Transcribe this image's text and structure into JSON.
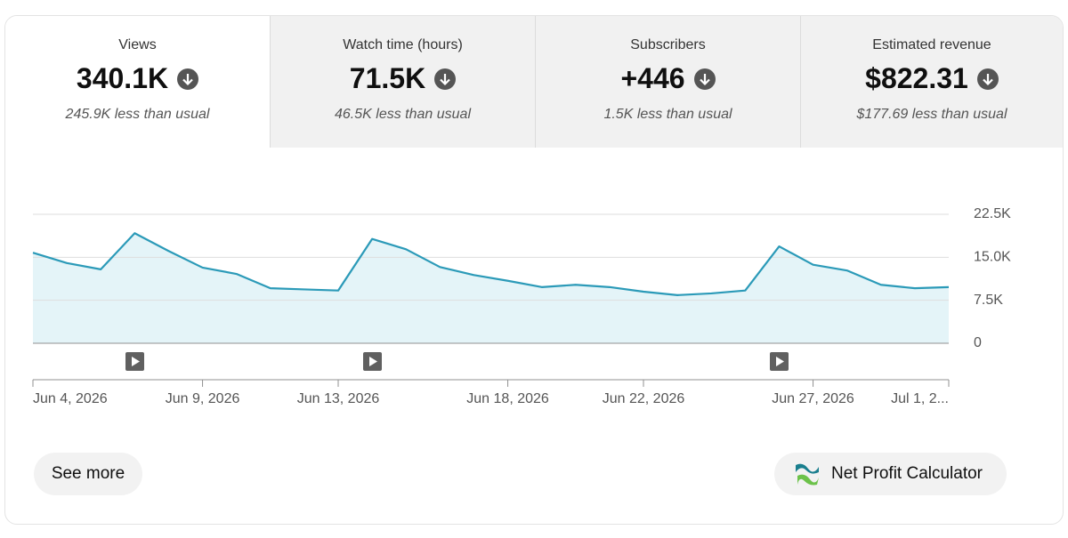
{
  "tabs": [
    {
      "label": "Views",
      "value": "340.1K",
      "note": "245.9K less than usual"
    },
    {
      "label": "Watch time (hours)",
      "value": "71.5K",
      "note": "46.5K less than usual"
    },
    {
      "label": "Subscribers",
      "value": "+446",
      "note": "1.5K less than usual"
    },
    {
      "label": "Estimated revenue",
      "value": "$822.31",
      "note": "$177.69 less than usual"
    }
  ],
  "selected_tab": 0,
  "chart_data": {
    "type": "area",
    "categories": [
      "Jun 4, 2026",
      null,
      null,
      null,
      null,
      "Jun 9, 2026",
      null,
      null,
      null,
      "Jun 13, 2026",
      null,
      null,
      null,
      null,
      "Jun 18, 2026",
      null,
      null,
      null,
      "Jun 22, 2026",
      null,
      null,
      null,
      null,
      "Jun 27, 2026",
      null,
      null,
      null,
      "Jul 1, 2..."
    ],
    "values": [
      15800,
      14000,
      12900,
      19200,
      16100,
      13200,
      12100,
      9600,
      9400,
      9200,
      18200,
      16400,
      13300,
      11900,
      10900,
      9800,
      10200,
      9800,
      9000,
      8400,
      8700,
      9200,
      16900,
      13700,
      12700,
      10200,
      9600,
      9800
    ],
    "color": "#2b9ab8",
    "fill_color": "#e4f4f8",
    "ylim": [
      0,
      22500
    ],
    "yticks": [
      0,
      {
        "value": 7500,
        "label": "7.5K"
      },
      {
        "value": 15000,
        "label": "15.0K"
      },
      {
        "value": 22500,
        "label": "22.5K"
      }
    ],
    "grid": true
  },
  "buttons": [
    "See more",
    "Net Profit Calculator"
  ]
}
